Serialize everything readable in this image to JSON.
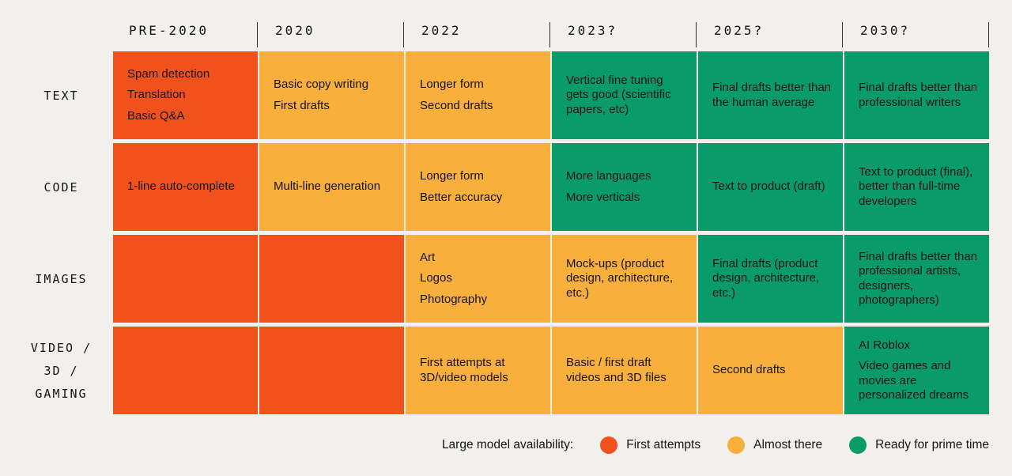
{
  "theme": {
    "background": "#F2F0ED",
    "text": "#141414",
    "header_rule": "#2F2F2F"
  },
  "chart_data": {
    "type": "table",
    "description": "Timeline matrix of generative AI model capability by modality and year, color-coded by large model availability",
    "columns": [
      "PRE-2020",
      "2020",
      "2022",
      "2023?",
      "2025?",
      "2030?"
    ],
    "status_colors": {
      "first_attempts": "#F1511C",
      "almost_there": "#F8AF3C",
      "ready_for_prime_time": "#0A9B6A"
    },
    "rows": [
      {
        "label": "TEXT",
        "cells": [
          {
            "status": "first_attempts",
            "lines": [
              "Spam detection",
              "Translation",
              "Basic Q&A"
            ]
          },
          {
            "status": "almost_there",
            "lines": [
              "Basic copy writing",
              "First drafts"
            ]
          },
          {
            "status": "almost_there",
            "lines": [
              "Longer form",
              "Second drafts"
            ]
          },
          {
            "status": "ready_for_prime_time",
            "lines": [
              "Vertical fine tuning gets good (scientific papers, etc)"
            ]
          },
          {
            "status": "ready_for_prime_time",
            "lines": [
              "Final drafts better than the human average"
            ]
          },
          {
            "status": "ready_for_prime_time",
            "lines": [
              "Final drafts better than professional writers"
            ]
          }
        ]
      },
      {
        "label": "CODE",
        "cells": [
          {
            "status": "first_attempts",
            "lines": [
              "1-line auto-complete"
            ]
          },
          {
            "status": "almost_there",
            "lines": [
              "Multi-line generation"
            ]
          },
          {
            "status": "almost_there",
            "lines": [
              "Longer form",
              "Better accuracy"
            ]
          },
          {
            "status": "ready_for_prime_time",
            "lines": [
              "More languages",
              "More verticals"
            ]
          },
          {
            "status": "ready_for_prime_time",
            "lines": [
              "Text to product (draft)"
            ]
          },
          {
            "status": "ready_for_prime_time",
            "lines": [
              "Text to product (final), better than full-time developers"
            ]
          }
        ]
      },
      {
        "label": "IMAGES",
        "cells": [
          {
            "status": "first_attempts",
            "lines": []
          },
          {
            "status": "first_attempts",
            "lines": []
          },
          {
            "status": "almost_there",
            "lines": [
              "Art",
              "Logos",
              "Photography"
            ]
          },
          {
            "status": "almost_there",
            "lines": [
              "Mock-ups (product design, architecture, etc.)"
            ]
          },
          {
            "status": "ready_for_prime_time",
            "lines": [
              "Final drafts (product design, architecture, etc.)"
            ]
          },
          {
            "status": "ready_for_prime_time",
            "lines": [
              "Final drafts better than professional artists, designers, photographers)"
            ]
          }
        ]
      },
      {
        "label": "VIDEO / 3D / GAMING",
        "label_lines": [
          "VIDEO /",
          "3D /",
          "GAMING"
        ],
        "cells": [
          {
            "status": "first_attempts",
            "lines": []
          },
          {
            "status": "first_attempts",
            "lines": []
          },
          {
            "status": "almost_there",
            "lines": [
              "First attempts at 3D/video models"
            ]
          },
          {
            "status": "almost_there",
            "lines": [
              "Basic / first draft videos and 3D files"
            ]
          },
          {
            "status": "almost_there",
            "lines": [
              "Second drafts"
            ]
          },
          {
            "status": "ready_for_prime_time",
            "lines": [
              "AI Roblox",
              "Video games and movies are personalized dreams"
            ]
          }
        ]
      }
    ]
  },
  "legend": {
    "label": "Large model availability:",
    "items": [
      {
        "status": "first_attempts",
        "label": "First attempts"
      },
      {
        "status": "almost_there",
        "label": "Almost there"
      },
      {
        "status": "ready_for_prime_time",
        "label": "Ready for prime time"
      }
    ]
  }
}
